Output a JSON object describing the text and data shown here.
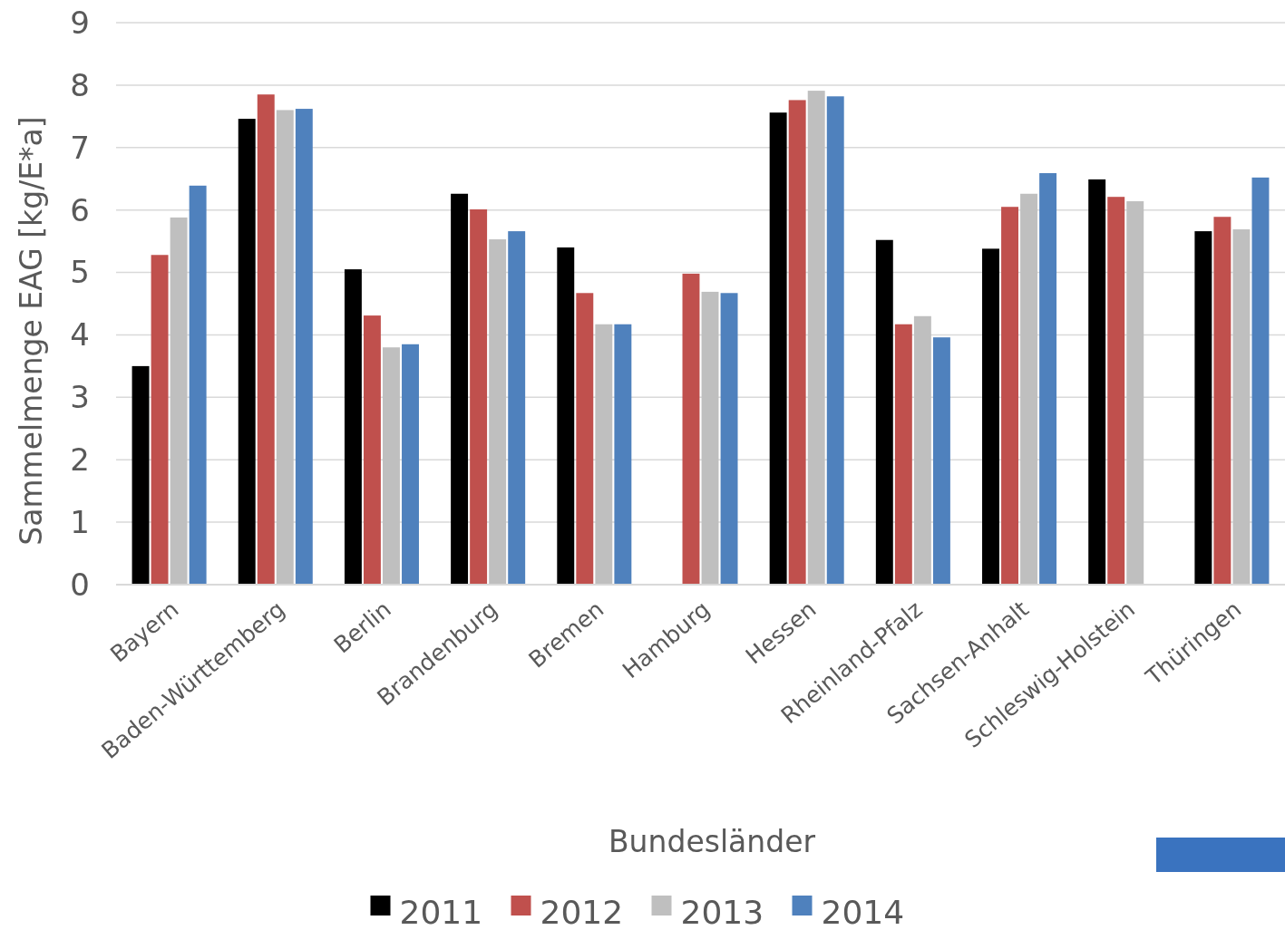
{
  "chart_data": {
    "type": "bar",
    "xlabel": "Bundesländer",
    "ylabel": "Sammelmenge EAG [kg/E*a]",
    "categories": [
      "Bayern",
      "Baden-Württemberg",
      "Berlin",
      "Brandenburg",
      "Bremen",
      "Hamburg",
      "Hessen",
      "Rheinland-Pfalz",
      "Sachsen-Anhalt",
      "Schleswig-Holstein",
      "Thüringen"
    ],
    "series": [
      {
        "name": "2011",
        "color": "#000000",
        "values": [
          3.5,
          7.46,
          5.05,
          6.26,
          5.4,
          null,
          7.56,
          5.52,
          5.38,
          6.49,
          5.66
        ]
      },
      {
        "name": "2012",
        "color": "#c0504d",
        "values": [
          5.28,
          7.85,
          4.31,
          6.01,
          4.67,
          4.98,
          7.76,
          4.17,
          6.05,
          6.21,
          5.89
        ]
      },
      {
        "name": "2013",
        "color": "#bfbfbf",
        "values": [
          5.88,
          7.6,
          3.8,
          5.53,
          4.17,
          4.69,
          7.91,
          4.3,
          6.26,
          6.14,
          5.69
        ]
      },
      {
        "name": "2014",
        "color": "#4f81bd",
        "values": [
          6.39,
          7.62,
          3.85,
          5.66,
          4.17,
          4.67,
          7.82,
          3.96,
          6.59,
          null,
          6.52
        ]
      }
    ],
    "ylim": [
      0,
      9
    ],
    "yticks": [
      0,
      1,
      2,
      3,
      4,
      5,
      6,
      7,
      8,
      9
    ],
    "grid": "y",
    "legend": "bottom"
  }
}
